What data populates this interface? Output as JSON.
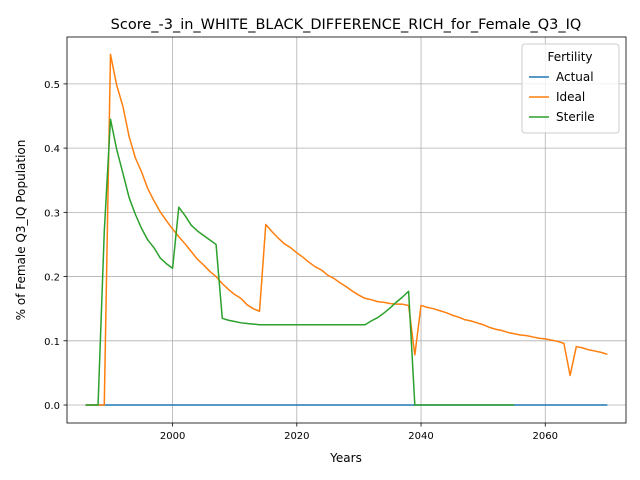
{
  "chart_data": {
    "type": "line",
    "title": "Score_-3_in_WHITE_BLACK_DIFFERENCE_RICH_for_Female_Q3_IQ",
    "xlabel": "Years",
    "ylabel": "% of Female Q3_IQ Population",
    "xlim": [
      1983,
      2073
    ],
    "ylim": [
      -0.028,
      0.573
    ],
    "xticks": [
      2000,
      2020,
      2040,
      2060
    ],
    "yticks": [
      0.0,
      0.1,
      0.2,
      0.3,
      0.4,
      0.5
    ],
    "xtick_labels": [
      "2000",
      "2020",
      "2040",
      "2060"
    ],
    "ytick_labels": [
      "0.0",
      "0.1",
      "0.2",
      "0.3",
      "0.4",
      "0.5"
    ],
    "grid": true,
    "legend": {
      "title": "Fertility",
      "placement": "top-right"
    },
    "series": [
      {
        "name": "Actual",
        "color": "#1f77b4",
        "points": [
          [
            1986,
            0.0
          ],
          [
            2070,
            0.0
          ]
        ]
      },
      {
        "name": "Ideal",
        "color": "#ff7f0e",
        "points": [
          [
            1986,
            0.0
          ],
          [
            1989,
            0.0
          ],
          [
            1990,
            0.546
          ],
          [
            1991,
            0.498
          ],
          [
            1992,
            0.465
          ],
          [
            1993,
            0.418
          ],
          [
            1994,
            0.385
          ],
          [
            1995,
            0.363
          ],
          [
            1996,
            0.337
          ],
          [
            1997,
            0.318
          ],
          [
            1998,
            0.301
          ],
          [
            1999,
            0.287
          ],
          [
            2000,
            0.274
          ],
          [
            2001,
            0.262
          ],
          [
            2002,
            0.251
          ],
          [
            2003,
            0.239
          ],
          [
            2004,
            0.227
          ],
          [
            2005,
            0.218
          ],
          [
            2006,
            0.208
          ],
          [
            2007,
            0.2
          ],
          [
            2008,
            0.189
          ],
          [
            2009,
            0.18
          ],
          [
            2010,
            0.172
          ],
          [
            2011,
            0.166
          ],
          [
            2012,
            0.156
          ],
          [
            2013,
            0.15
          ],
          [
            2014,
            0.146
          ],
          [
            2015,
            0.281
          ],
          [
            2016,
            0.27
          ],
          [
            2017,
            0.26
          ],
          [
            2018,
            0.251
          ],
          [
            2019,
            0.245
          ],
          [
            2020,
            0.237
          ],
          [
            2021,
            0.23
          ],
          [
            2022,
            0.222
          ],
          [
            2023,
            0.215
          ],
          [
            2024,
            0.21
          ],
          [
            2025,
            0.202
          ],
          [
            2026,
            0.197
          ],
          [
            2027,
            0.19
          ],
          [
            2028,
            0.184
          ],
          [
            2029,
            0.177
          ],
          [
            2030,
            0.171
          ],
          [
            2031,
            0.166
          ],
          [
            2032,
            0.164
          ],
          [
            2033,
            0.161
          ],
          [
            2034,
            0.16
          ],
          [
            2035,
            0.158
          ],
          [
            2036,
            0.157
          ],
          [
            2037,
            0.157
          ],
          [
            2038,
            0.155
          ],
          [
            2039,
            0.078
          ],
          [
            2040,
            0.155
          ],
          [
            2041,
            0.152
          ],
          [
            2042,
            0.15
          ],
          [
            2043,
            0.147
          ],
          [
            2044,
            0.144
          ],
          [
            2045,
            0.14
          ],
          [
            2046,
            0.137
          ],
          [
            2047,
            0.133
          ],
          [
            2048,
            0.131
          ],
          [
            2049,
            0.128
          ],
          [
            2050,
            0.125
          ],
          [
            2051,
            0.121
          ],
          [
            2052,
            0.118
          ],
          [
            2053,
            0.116
          ],
          [
            2054,
            0.113
          ],
          [
            2055,
            0.111
          ],
          [
            2056,
            0.109
          ],
          [
            2057,
            0.108
          ],
          [
            2058,
            0.106
          ],
          [
            2059,
            0.104
          ],
          [
            2060,
            0.103
          ],
          [
            2061,
            0.101
          ],
          [
            2062,
            0.099
          ],
          [
            2063,
            0.096
          ],
          [
            2064,
            0.046
          ],
          [
            2065,
            0.091
          ],
          [
            2066,
            0.089
          ],
          [
            2067,
            0.086
          ],
          [
            2068,
            0.084
          ],
          [
            2069,
            0.082
          ],
          [
            2070,
            0.079
          ]
        ]
      },
      {
        "name": "Sterile",
        "color": "#2ca02c",
        "points": [
          [
            1986,
            0.0
          ],
          [
            1988,
            0.0
          ],
          [
            1989,
            0.27
          ],
          [
            1990,
            0.445
          ],
          [
            1991,
            0.398
          ],
          [
            1992,
            0.361
          ],
          [
            1993,
            0.323
          ],
          [
            1994,
            0.297
          ],
          [
            1995,
            0.275
          ],
          [
            1996,
            0.257
          ],
          [
            1997,
            0.245
          ],
          [
            1998,
            0.229
          ],
          [
            1999,
            0.22
          ],
          [
            2000,
            0.213
          ],
          [
            2001,
            0.308
          ],
          [
            2002,
            0.295
          ],
          [
            2003,
            0.28
          ],
          [
            2004,
            0.271
          ],
          [
            2005,
            0.264
          ],
          [
            2006,
            0.257
          ],
          [
            2007,
            0.25
          ],
          [
            2008,
            0.135
          ],
          [
            2009,
            0.132
          ],
          [
            2010,
            0.13
          ],
          [
            2011,
            0.128
          ],
          [
            2012,
            0.127
          ],
          [
            2013,
            0.126
          ],
          [
            2014,
            0.125
          ],
          [
            2015,
            0.125
          ],
          [
            2016,
            0.125
          ],
          [
            2017,
            0.125
          ],
          [
            2018,
            0.125
          ],
          [
            2019,
            0.125
          ],
          [
            2020,
            0.125
          ],
          [
            2025,
            0.125
          ],
          [
            2031,
            0.125
          ],
          [
            2032,
            0.131
          ],
          [
            2033,
            0.136
          ],
          [
            2034,
            0.143
          ],
          [
            2035,
            0.151
          ],
          [
            2036,
            0.16
          ],
          [
            2037,
            0.168
          ],
          [
            2038,
            0.177
          ],
          [
            2039,
            0.0
          ],
          [
            2055,
            0.0
          ]
        ]
      }
    ]
  }
}
